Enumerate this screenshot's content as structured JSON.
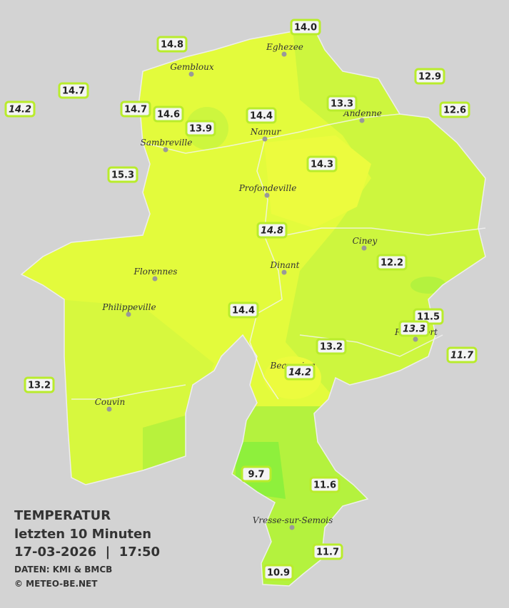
{
  "title": {
    "heading": "TEMPERATUR",
    "period": "letzten 10 Minuten",
    "datetime": "17-03-2026  |  17:50",
    "source": "DATEN: KMI & BMCB",
    "copyright": "© METEO-BE.NET"
  },
  "cities": [
    {
      "name": "Eghezee"
    },
    {
      "name": "Gembloux"
    },
    {
      "name": "Andenne"
    },
    {
      "name": "Namur"
    },
    {
      "name": "Sambreville"
    },
    {
      "name": "Profondeville"
    },
    {
      "name": "Ciney"
    },
    {
      "name": "Dinant"
    },
    {
      "name": "Florennes"
    },
    {
      "name": "Philippeville"
    },
    {
      "name": "Rochefort"
    },
    {
      "name": "Beauraing"
    },
    {
      "name": "Couvin"
    },
    {
      "name": "Vresse-sur-Semois"
    }
  ],
  "stations": [
    {
      "label": "14.0",
      "italic": false
    },
    {
      "label": "14.8",
      "italic": false
    },
    {
      "label": "14.7",
      "italic": false
    },
    {
      "label": "14.2",
      "italic": true
    },
    {
      "label": "14.7",
      "italic": false
    },
    {
      "label": "14.6",
      "italic": false
    },
    {
      "label": "13.9",
      "italic": false
    },
    {
      "label": "14.4",
      "italic": false
    },
    {
      "label": "13.3",
      "italic": false
    },
    {
      "label": "12.9",
      "italic": false
    },
    {
      "label": "12.6",
      "italic": false
    },
    {
      "label": "15.3",
      "italic": false
    },
    {
      "label": "14.3",
      "italic": false
    },
    {
      "label": "14.8",
      "italic": true
    },
    {
      "label": "12.2",
      "italic": false
    },
    {
      "label": "14.4",
      "italic": false
    },
    {
      "label": "11.5",
      "italic": false
    },
    {
      "label": "13.3",
      "italic": true
    },
    {
      "label": "11.7",
      "italic": true
    },
    {
      "label": "13.2",
      "italic": false
    },
    {
      "label": "14.2",
      "italic": true
    },
    {
      "label": "13.2",
      "italic": false
    },
    {
      "label": "9.7",
      "italic": false
    },
    {
      "label": "11.6",
      "italic": false
    },
    {
      "label": "11.7",
      "italic": false
    },
    {
      "label": "10.9",
      "italic": false
    }
  ]
}
